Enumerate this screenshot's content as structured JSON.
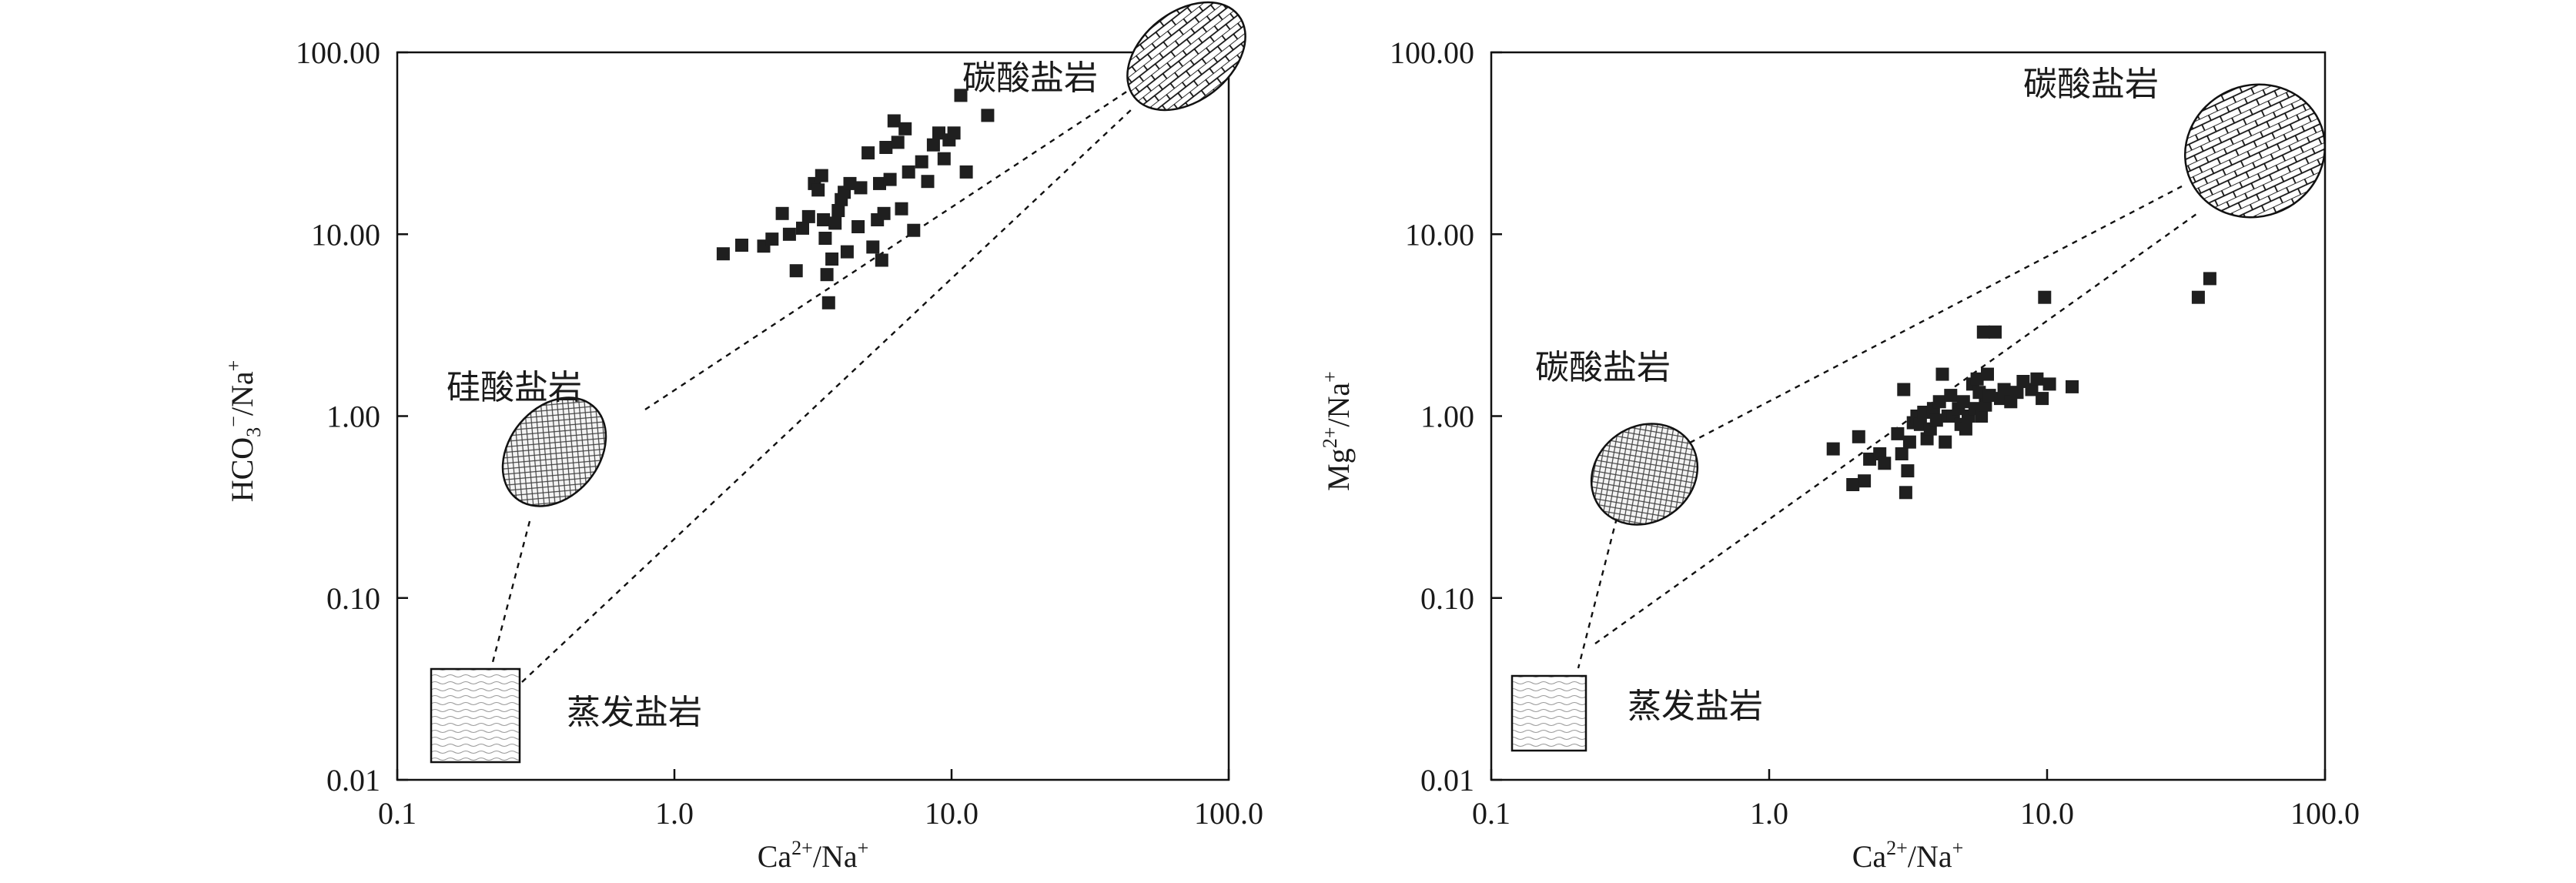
{
  "chart_data": [
    {
      "type": "scatter",
      "scale": "log-log",
      "xlabel": {
        "base": "Ca",
        "sup1": "2+",
        "mid": "/Na",
        "sup2": "+"
      },
      "ylabel": {
        "base": "HCO",
        "sub": "3",
        "sup1": "−",
        "mid": "/Na",
        "sup2": "+"
      },
      "xlim": [
        0.1,
        100
      ],
      "ylim": [
        0.01,
        100
      ],
      "x_ticks": [
        "0.1",
        "1.0",
        "10.0",
        "100.0"
      ],
      "y_ticks": [
        "0.01",
        "0.10",
        "1.00",
        "10.00",
        "100.00"
      ],
      "regions": [
        {
          "label": "碳酸盐岩",
          "fill": "brick"
        },
        {
          "label": "硅酸盐岩",
          "fill": "crosshatch"
        },
        {
          "label": "蒸发盐岩",
          "fill": "wavy"
        }
      ],
      "points": [
        [
          1.5,
          7.8
        ],
        [
          1.75,
          8.7
        ],
        [
          2.1,
          8.6
        ],
        [
          2.25,
          9.4
        ],
        [
          2.45,
          13.0
        ],
        [
          2.6,
          10.0
        ],
        [
          2.75,
          6.3
        ],
        [
          2.9,
          10.8
        ],
        [
          3.05,
          12.5
        ],
        [
          3.2,
          19.0
        ],
        [
          3.3,
          17.5
        ],
        [
          3.4,
          21.0
        ],
        [
          3.45,
          12.0
        ],
        [
          3.5,
          9.5
        ],
        [
          3.55,
          6.0
        ],
        [
          3.6,
          4.2
        ],
        [
          3.7,
          7.3
        ],
        [
          3.8,
          11.5
        ],
        [
          3.9,
          13.5
        ],
        [
          4.0,
          15.5
        ],
        [
          4.1,
          17.0
        ],
        [
          4.2,
          8.0
        ],
        [
          4.3,
          19.0
        ],
        [
          4.6,
          11.0
        ],
        [
          4.7,
          18.0
        ],
        [
          5.0,
          28.0
        ],
        [
          5.2,
          8.5
        ],
        [
          5.4,
          12.0
        ],
        [
          5.5,
          19.0
        ],
        [
          5.6,
          7.2
        ],
        [
          5.7,
          13.0
        ],
        [
          5.8,
          30.0
        ],
        [
          6.0,
          20.0
        ],
        [
          6.2,
          42.0
        ],
        [
          6.4,
          32.0
        ],
        [
          6.6,
          13.8
        ],
        [
          6.8,
          38.0
        ],
        [
          7.0,
          22.0
        ],
        [
          7.3,
          10.5
        ],
        [
          7.8,
          25.0
        ],
        [
          8.2,
          19.5
        ],
        [
          8.6,
          31.0
        ],
        [
          9.0,
          36.0
        ],
        [
          9.4,
          26.0
        ],
        [
          9.8,
          33.0
        ],
        [
          10.2,
          36.0
        ],
        [
          10.8,
          58.0
        ],
        [
          11.3,
          22.0
        ],
        [
          13.5,
          45.0
        ]
      ]
    },
    {
      "type": "scatter",
      "scale": "log-log",
      "xlabel": {
        "base": "Ca",
        "sup1": "2+",
        "mid": "/Na",
        "sup2": "+"
      },
      "ylabel": {
        "base": "Mg",
        "sup1": "2+",
        "mid": "/Na",
        "sup2": "+"
      },
      "xlim": [
        0.1,
        100
      ],
      "ylim": [
        0.01,
        100
      ],
      "x_ticks": [
        "0.1",
        "1.0",
        "10.0",
        "100.0"
      ],
      "y_ticks": [
        "0.01",
        "0.10",
        "1.00",
        "10.00",
        "100.00"
      ],
      "regions": [
        {
          "label": "碳酸盐岩",
          "fill": "brick"
        },
        {
          "label": "碳酸盐岩",
          "fill": "crosshatch"
        },
        {
          "label": "蒸发盐岩",
          "fill": "wavy"
        }
      ],
      "points": [
        [
          1.7,
          0.66
        ],
        [
          2.0,
          0.42
        ],
        [
          2.1,
          0.77
        ],
        [
          2.2,
          0.44
        ],
        [
          2.3,
          0.58
        ],
        [
          2.5,
          0.62
        ],
        [
          2.6,
          0.55
        ],
        [
          2.9,
          0.8
        ],
        [
          3.0,
          0.62
        ],
        [
          3.05,
          1.4
        ],
        [
          3.1,
          0.38
        ],
        [
          3.15,
          0.5
        ],
        [
          3.2,
          0.72
        ],
        [
          3.3,
          0.92
        ],
        [
          3.4,
          1.0
        ],
        [
          3.5,
          0.9
        ],
        [
          3.6,
          1.05
        ],
        [
          3.7,
          0.75
        ],
        [
          3.8,
          0.85
        ],
        [
          3.9,
          1.1
        ],
        [
          4.0,
          0.95
        ],
        [
          4.1,
          1.2
        ],
        [
          4.2,
          1.7
        ],
        [
          4.3,
          0.72
        ],
        [
          4.4,
          1.0
        ],
        [
          4.5,
          1.3
        ],
        [
          4.6,
          1.0
        ],
        [
          4.8,
          1.1
        ],
        [
          4.9,
          0.9
        ],
        [
          5.0,
          1.2
        ],
        [
          5.1,
          0.85
        ],
        [
          5.2,
          1.0
        ],
        [
          5.4,
          1.5
        ],
        [
          5.5,
          1.1
        ],
        [
          5.6,
          1.6
        ],
        [
          5.7,
          1.35
        ],
        [
          5.8,
          1.0
        ],
        [
          5.9,
          2.9
        ],
        [
          6.0,
          1.15
        ],
        [
          6.1,
          1.7
        ],
        [
          6.2,
          1.3
        ],
        [
          6.5,
          2.9
        ],
        [
          6.8,
          1.25
        ],
        [
          7.0,
          1.4
        ],
        [
          7.4,
          1.2
        ],
        [
          7.8,
          1.35
        ],
        [
          8.2,
          1.55
        ],
        [
          8.8,
          1.4
        ],
        [
          9.2,
          1.6
        ],
        [
          9.6,
          1.25
        ],
        [
          9.8,
          4.5
        ],
        [
          10.2,
          1.5
        ],
        [
          12.3,
          1.45
        ],
        [
          35.0,
          4.5
        ],
        [
          38.5,
          5.7
        ]
      ]
    }
  ]
}
